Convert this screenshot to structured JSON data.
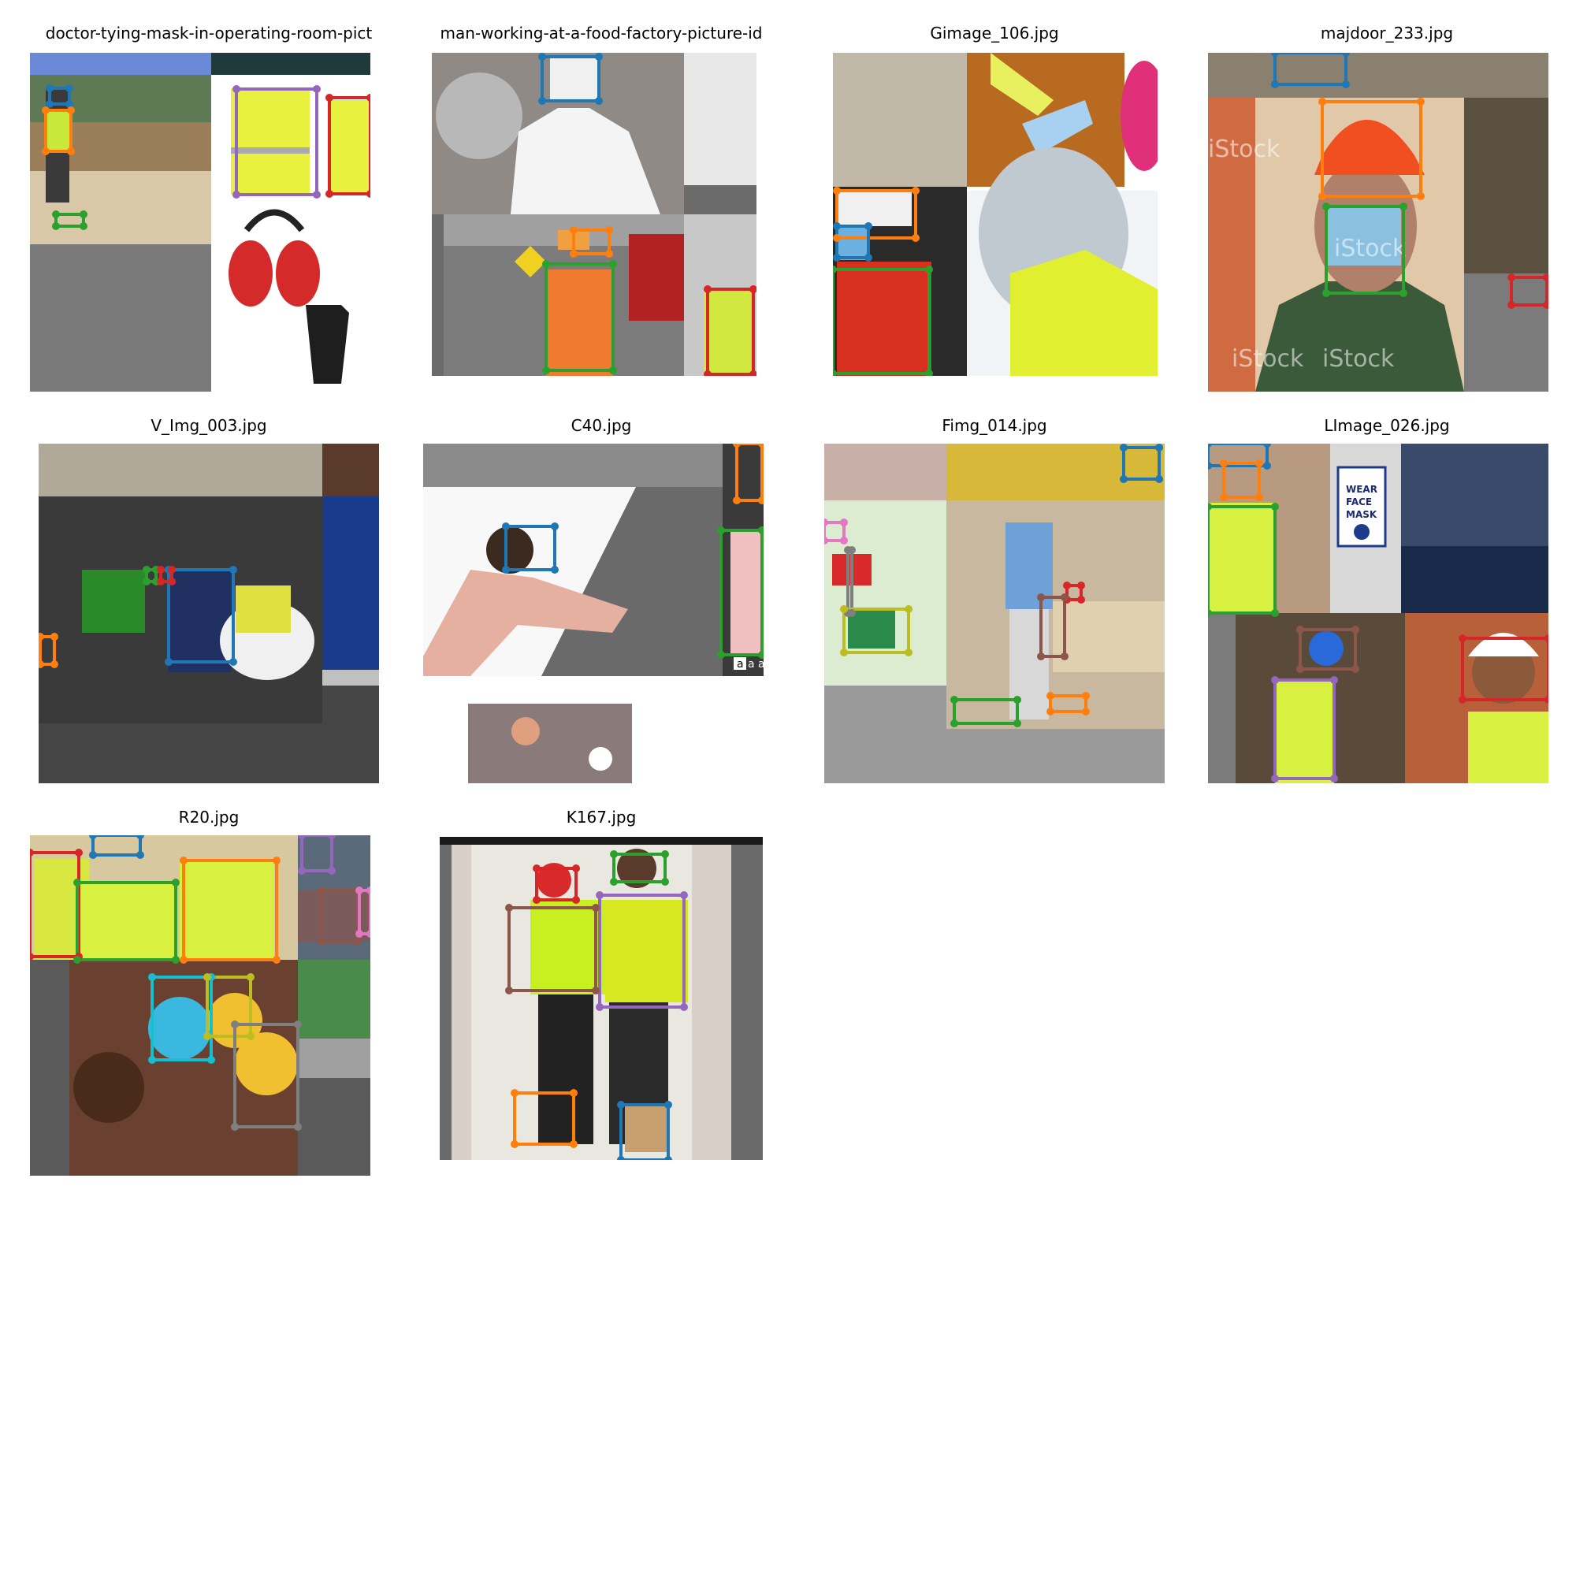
{
  "panels": [
    {
      "title": "doctor-tying-mask-in-operating-room-pict",
      "boxes": [
        {
          "color": "#1f77b4"
        },
        {
          "color": "#ff7f0e"
        },
        {
          "color": "#2ca02c"
        },
        {
          "color": "#9467bd"
        },
        {
          "color": "#d62728"
        }
      ]
    },
    {
      "title": "man-working-at-a-food-factory-picture-id",
      "boxes": [
        {
          "color": "#1f77b4"
        },
        {
          "color": "#ff7f0e"
        },
        {
          "color": "#2ca02c"
        },
        {
          "color": "#d62728"
        }
      ]
    },
    {
      "title": "Gimage_106.jpg",
      "boxes": [
        {
          "color": "#ff7f0e"
        },
        {
          "color": "#1f77b4"
        },
        {
          "color": "#2ca02c"
        }
      ]
    },
    {
      "title": "majdoor_233.jpg",
      "watermark": "iStock",
      "boxes": [
        {
          "color": "#1f77b4"
        },
        {
          "color": "#ff7f0e"
        },
        {
          "color": "#2ca02c"
        },
        {
          "color": "#d62728"
        }
      ]
    },
    {
      "title": "V_Img_003.jpg",
      "boxes": [
        {
          "color": "#1f77b4"
        },
        {
          "color": "#2ca02c"
        },
        {
          "color": "#d62728"
        },
        {
          "color": "#ff7f0e"
        }
      ]
    },
    {
      "title": "C40.jpg",
      "watermark": "a al",
      "boxes": [
        {
          "color": "#1f77b4"
        },
        {
          "color": "#ff7f0e"
        },
        {
          "color": "#2ca02c"
        }
      ]
    },
    {
      "title": "Fimg_014.jpg",
      "boxes": [
        {
          "color": "#1f77b4"
        },
        {
          "color": "#e377c2"
        },
        {
          "color": "#7f7f7f"
        },
        {
          "color": "#bcbd22"
        },
        {
          "color": "#d62728"
        },
        {
          "color": "#8c564b"
        },
        {
          "color": "#2ca02c"
        },
        {
          "color": "#ff7f0e"
        }
      ]
    },
    {
      "title": "LImage_026.jpg",
      "sign": [
        "WEAR",
        "FACE",
        "MASK"
      ],
      "boxes": [
        {
          "color": "#1f77b4"
        },
        {
          "color": "#ff7f0e"
        },
        {
          "color": "#2ca02c"
        },
        {
          "color": "#8c564b"
        },
        {
          "color": "#9467bd"
        },
        {
          "color": "#d62728"
        }
      ]
    },
    {
      "title": "R20.jpg",
      "boxes": [
        {
          "color": "#1f77b4"
        },
        {
          "color": "#d62728"
        },
        {
          "color": "#2ca02c"
        },
        {
          "color": "#ff7f0e"
        },
        {
          "color": "#9467bd"
        },
        {
          "color": "#8c564b"
        },
        {
          "color": "#e377c2"
        },
        {
          "color": "#17becf"
        },
        {
          "color": "#bcbd22"
        },
        {
          "color": "#7f7f7f"
        }
      ]
    },
    {
      "title": "K167.jpg",
      "boxes": [
        {
          "color": "#d62728"
        },
        {
          "color": "#2ca02c"
        },
        {
          "color": "#8c564b"
        },
        {
          "color": "#9467bd"
        },
        {
          "color": "#ff7f0e"
        },
        {
          "color": "#1f77b4"
        }
      ]
    }
  ]
}
